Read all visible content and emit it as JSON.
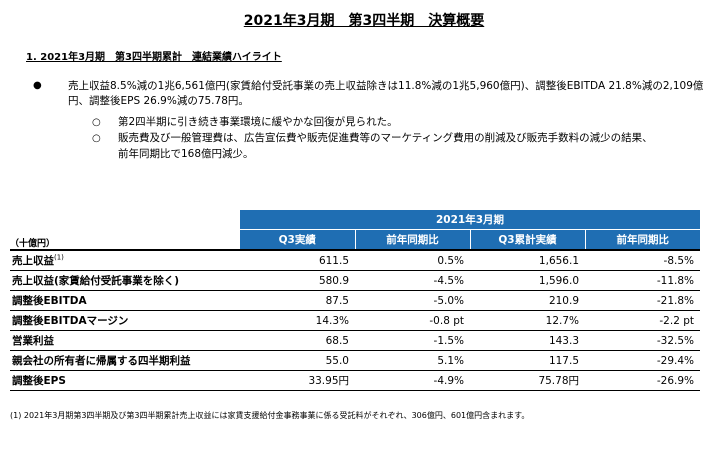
{
  "title": "2021年3月期　第3四半期　決算概要",
  "section_heading": "1. 2021年3月期　第3四半期累計　連結業績ハイライト",
  "bullet": {
    "mark": "●",
    "text": "売上収益8.5%減の1兆6,561億円(家賃給付受託事業の売上収益除きは11.8%減の1兆5,960億円)、調整後EBITDA 21.8%減の2,109億円、調整後EPS 26.9%減の75.78円。",
    "sub_mark": "○",
    "subs": [
      "第2四半期に引き続き事業環境に緩やかな回復が見られた。",
      "販売費及び一般管理費は、広告宣伝費や販売促進費等のマーケティング費用の削減及び販売手数料の減少の結果、",
      "前年同期比で168億円減少。"
    ]
  },
  "table": {
    "unit": "（十億円）",
    "period": "2021年3月期",
    "columns": [
      "Q3実績",
      "前年同期比",
      "Q3累計実績",
      "前年同期比"
    ],
    "rows": [
      {
        "label": "売上収益",
        "note": "(1)",
        "q3": "611.5",
        "q3_yoy": "0.5%",
        "cum": "1,656.1",
        "cum_yoy": "-8.5%"
      },
      {
        "label": "売上収益(家賃給付受託事業を除く)",
        "note": "",
        "q3": "580.9",
        "q3_yoy": "-4.5%",
        "cum": "1,596.0",
        "cum_yoy": "-11.8%"
      },
      {
        "label": "調整後EBITDA",
        "note": "",
        "q3": "87.5",
        "q3_yoy": "-5.0%",
        "cum": "210.9",
        "cum_yoy": "-21.8%"
      },
      {
        "label": "調整後EBITDAマージン",
        "note": "",
        "q3": "14.3%",
        "q3_yoy": "-0.8 pt",
        "cum": "12.7%",
        "cum_yoy": "-2.2 pt"
      },
      {
        "label": "営業利益",
        "note": "",
        "q3": "68.5",
        "q3_yoy": "-1.5%",
        "cum": "143.3",
        "cum_yoy": "-32.5%"
      },
      {
        "label": "親会社の所有者に帰属する四半期利益",
        "note": "",
        "q3": "55.0",
        "q3_yoy": "5.1%",
        "cum": "117.5",
        "cum_yoy": "-29.4%"
      },
      {
        "label": "調整後EPS",
        "note": "",
        "q3": "33.95円",
        "q3_yoy": "-4.9%",
        "cum": "75.78円",
        "cum_yoy": "-26.9%"
      }
    ]
  },
  "footnote": "(1) 2021年3月期第3四半期及び第3四半期累計売上収益には家賃支援給付金事務事業に係る受託料がそれぞれ、306億円、601億円含まれます。"
}
